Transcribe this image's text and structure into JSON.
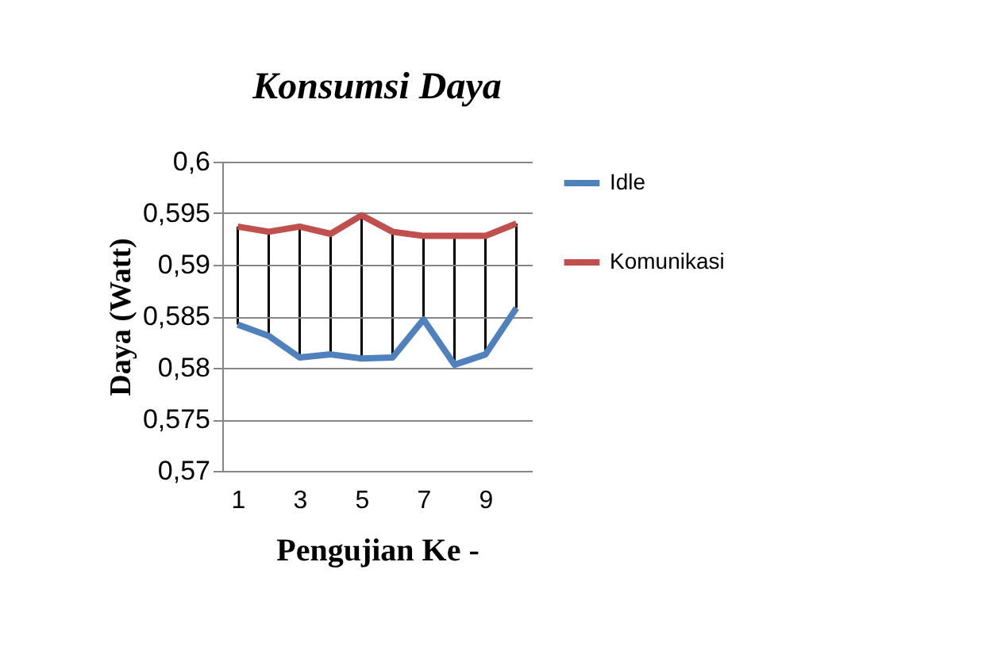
{
  "chart_data": {
    "type": "line",
    "title": "Konsumsi Daya",
    "xlabel": "Pengujian Ke -",
    "ylabel": "Daya (Watt)",
    "categories": [
      "1",
      null,
      "3",
      null,
      "5",
      null,
      "7",
      null,
      "9",
      null
    ],
    "series": [
      {
        "name": "Idle",
        "color": "#4f81bd",
        "values": [
          0.5842,
          0.5831,
          0.581,
          0.5813,
          0.5809,
          0.581,
          0.5847,
          0.5803,
          0.5813,
          0.5858
        ]
      },
      {
        "name": "Komunikasi",
        "color": "#c0504d",
        "values": [
          0.5937,
          0.5932,
          0.5937,
          0.593,
          0.5948,
          0.5932,
          0.5928,
          0.5928,
          0.5928,
          0.594
        ]
      }
    ],
    "ylim": [
      0.57,
      0.6
    ],
    "yticks": [
      {
        "value": 0.57,
        "label": "0,57"
      },
      {
        "value": 0.575,
        "label": "0,575"
      },
      {
        "value": 0.58,
        "label": "0,58"
      },
      {
        "value": 0.585,
        "label": "0,585"
      },
      {
        "value": 0.59,
        "label": "0,59"
      },
      {
        "value": 0.595,
        "label": "0,595"
      },
      {
        "value": 0.6,
        "label": "0,6"
      }
    ],
    "grid": "y",
    "legend": "right",
    "marker": "none",
    "line_style": "solid"
  }
}
